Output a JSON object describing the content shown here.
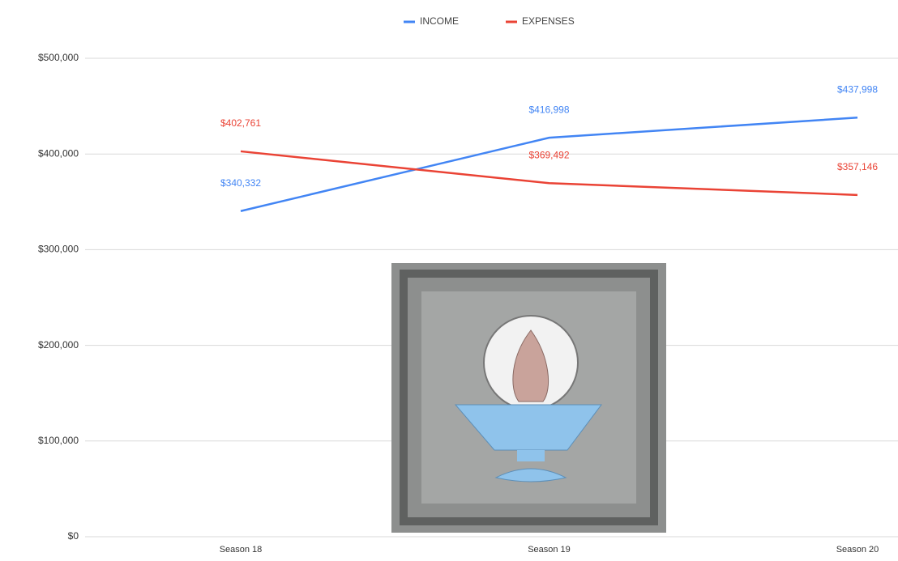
{
  "chart_data": {
    "type": "line",
    "categories": [
      "Season 18",
      "Season 19",
      "Season 20"
    ],
    "series": [
      {
        "name": "INCOME",
        "color": "#4285f4",
        "values": [
          340332,
          416998,
          437998
        ],
        "value_labels": [
          "$340,332",
          "$416,998",
          "$437,998"
        ]
      },
      {
        "name": "EXPENSES",
        "color": "#ea4335",
        "values": [
          402761,
          369492,
          357146
        ],
        "value_labels": [
          "$402,761",
          "$369,492",
          "$357,146"
        ]
      }
    ],
    "ylim": [
      0,
      500000
    ],
    "yticks": [
      {
        "value": 0,
        "label": "$0"
      },
      {
        "value": 100000,
        "label": "$100,000"
      },
      {
        "value": 200000,
        "label": "$200,000"
      },
      {
        "value": 300000,
        "label": "$300,000"
      },
      {
        "value": 400000,
        "label": "$400,000"
      },
      {
        "value": 500000,
        "label": "$500,000"
      }
    ],
    "grid": true,
    "legend": "top"
  }
}
